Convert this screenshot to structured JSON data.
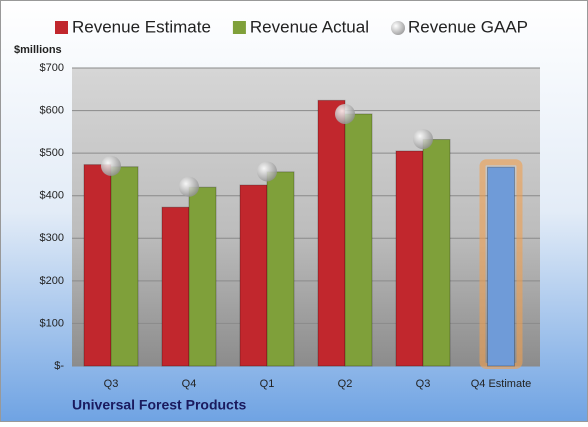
{
  "chart_data": {
    "type": "bar",
    "subtitle": "Universal Forest Products",
    "y_label": "$millions",
    "categories": [
      "Q3",
      "Q4",
      "Q1",
      "Q2",
      "Q3",
      "Q4 Estimate"
    ],
    "series": [
      {
        "name": "Revenue Estimate",
        "color": "#c1272d",
        "values": [
          473,
          373,
          425,
          624,
          505,
          467
        ],
        "point_colors": [
          "#c1272d",
          "#c1272d",
          "#c1272d",
          "#c1272d",
          "#c1272d",
          "#6f9bd8"
        ]
      },
      {
        "name": "Revenue Actual",
        "color": "#7fa03a",
        "values": [
          468,
          420,
          456,
          592,
          532,
          null
        ]
      },
      {
        "name": "Revenue GAAP",
        "color": "#a8a8a8",
        "marker": "circle",
        "values": [
          470,
          421,
          457,
          592,
          533,
          null
        ]
      }
    ],
    "ylim": [
      0,
      700
    ],
    "yticks": [
      {
        "value": 0,
        "label": "$-"
      },
      {
        "value": 100,
        "label": "$100"
      },
      {
        "value": 200,
        "label": "$200"
      },
      {
        "value": 300,
        "label": "$300"
      },
      {
        "value": 400,
        "label": "$400"
      },
      {
        "value": 500,
        "label": "$500"
      },
      {
        "value": 600,
        "label": "$600"
      },
      {
        "value": 700,
        "label": "$700"
      }
    ],
    "grid": true
  }
}
